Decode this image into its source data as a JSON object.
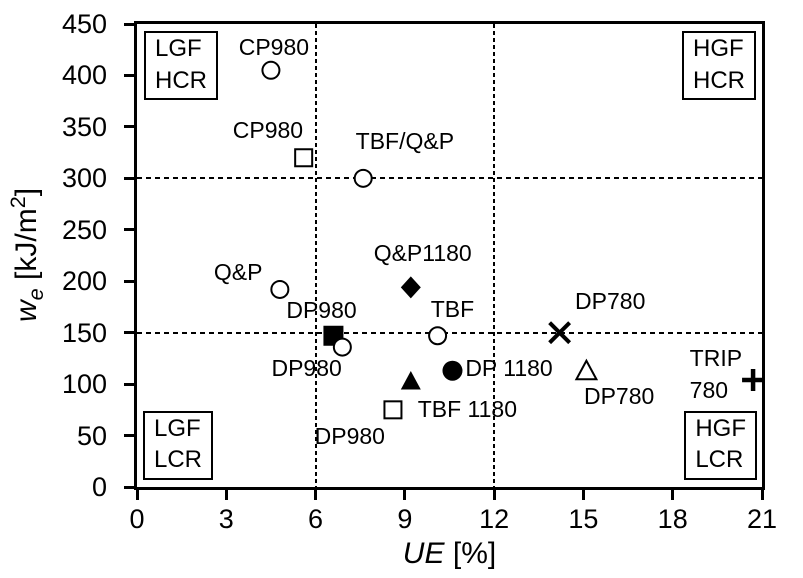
{
  "figure": {
    "background": "#ffffff",
    "text_color": "#000000"
  },
  "colors": {
    "marker": "#000000",
    "axis": "#000000",
    "reference_line": "#000000",
    "open_marker_fill": "#ffffff"
  },
  "chart_data": {
    "type": "scatter",
    "title": "",
    "xlabel": {
      "variable": "UE",
      "unit": "[%]"
    },
    "ylabel": {
      "variable": "w",
      "subscript": "e",
      "unit_prefix": "[kJ/m",
      "unit_superscript": "2",
      "unit_suffix": "]"
    },
    "xlim": [
      0,
      21
    ],
    "ylim": [
      0,
      450
    ],
    "x_ticks": [
      0,
      3,
      6,
      9,
      12,
      15,
      18,
      21
    ],
    "y_ticks": [
      0,
      50,
      100,
      150,
      200,
      250,
      300,
      350,
      400,
      450
    ],
    "grid": "off",
    "legend": "none",
    "reference_lines": {
      "horizontal_we": [
        150,
        300
      ],
      "vertical_ue": [
        6,
        12
      ]
    },
    "quadrant_labels": [
      {
        "text": "LGF\nHCR",
        "position": "top-left"
      },
      {
        "text": "HGF\nHCR",
        "position": "top-right"
      },
      {
        "text": "LGF\nLCR",
        "position": "bottom-left"
      },
      {
        "text": "HGF\nLCR",
        "position": "bottom-right"
      }
    ],
    "points": [
      {
        "label": "CP980",
        "marker": "circle-open",
        "ue": 4.5,
        "we": 405,
        "label_at": {
          "ue": 4.6,
          "we": 428
        }
      },
      {
        "label": "CP980",
        "marker": "square-open",
        "ue": 5.6,
        "we": 320,
        "label_at": {
          "ue": 4.4,
          "we": 347
        }
      },
      {
        "label": "TBF/Q&P",
        "marker": "circle-open",
        "ue": 7.6,
        "we": 300,
        "label_at": {
          "ue": 9.0,
          "we": 336
        }
      },
      {
        "label": "Q&P",
        "marker": "circle-open",
        "ue": 4.8,
        "we": 192,
        "label_at": {
          "ue": 3.4,
          "we": 209
        }
      },
      {
        "label": "Q&P1180",
        "marker": "diamond-filled",
        "ue": 9.2,
        "we": 194,
        "label_at": {
          "ue": 9.6,
          "we": 227
        }
      },
      {
        "label": "DP980",
        "marker": "square-filled",
        "ue": 6.6,
        "we": 147,
        "label_at": {
          "ue": 6.2,
          "we": 172
        }
      },
      {
        "label": "DP980",
        "marker": "circle-open",
        "ue": 6.9,
        "we": 136,
        "label_at": {
          "ue": 5.7,
          "we": 116
        }
      },
      {
        "label": "TBF",
        "marker": "circle-open",
        "ue": 10.1,
        "we": 147,
        "label_at": {
          "ue": 10.6,
          "we": 173
        }
      },
      {
        "label": "DP 1180",
        "marker": "circle-filled",
        "ue": 10.6,
        "we": 113,
        "label_at": {
          "ue": 12.5,
          "we": 116
        }
      },
      {
        "label": "TBF 1180",
        "marker": "triangle-filled",
        "ue": 9.2,
        "we": 103,
        "label_at": {
          "ue": 11.1,
          "we": 76
        }
      },
      {
        "label": "DP980",
        "marker": "square-open",
        "ue": 8.6,
        "we": 75,
        "label_at": {
          "ue": 7.15,
          "we": 50
        }
      },
      {
        "label": "DP780",
        "marker": "x-cross",
        "ue": 14.2,
        "we": 150,
        "label_at": {
          "ue": 15.9,
          "we": 181
        }
      },
      {
        "label": "DP780",
        "marker": "triangle-open",
        "ue": 15.1,
        "we": 113,
        "label_at": {
          "ue": 16.2,
          "we": 88
        }
      },
      {
        "label": "TRIP\n780",
        "marker": "plus",
        "ue": 20.7,
        "we": 104,
        "label_at": {
          "ue": 19.45,
          "we": 110
        }
      }
    ]
  }
}
